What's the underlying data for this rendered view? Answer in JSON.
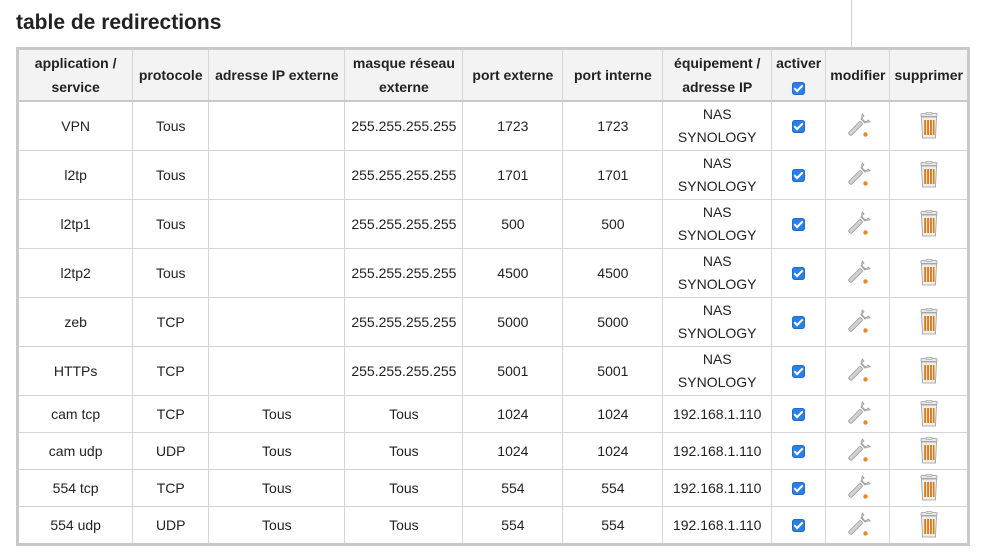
{
  "page": {
    "title": "table de redirections"
  },
  "table": {
    "headers": {
      "application": [
        "application /",
        "service"
      ],
      "protocole": "protocole",
      "ip_externe": "adresse IP externe",
      "masque": [
        "masque réseau",
        "externe"
      ],
      "port_externe": "port externe",
      "port_interne": "port interne",
      "equipement": [
        "équipement /",
        "adresse IP"
      ],
      "activer": "activer",
      "modifier": "modifier",
      "supprimer": "supprimer"
    },
    "rows": [
      {
        "service": "VPN",
        "protocol": "Tous",
        "ip_ext": "",
        "mask": "255.255.255.255",
        "port_ext": "1723",
        "port_int": "1723",
        "device": [
          "NAS",
          "SYNOLOGY"
        ],
        "active": true
      },
      {
        "service": "l2tp",
        "protocol": "Tous",
        "ip_ext": "",
        "mask": "255.255.255.255",
        "port_ext": "1701",
        "port_int": "1701",
        "device": [
          "NAS",
          "SYNOLOGY"
        ],
        "active": true
      },
      {
        "service": "l2tp1",
        "protocol": "Tous",
        "ip_ext": "",
        "mask": "255.255.255.255",
        "port_ext": "500",
        "port_int": "500",
        "device": [
          "NAS",
          "SYNOLOGY"
        ],
        "active": true
      },
      {
        "service": "l2tp2",
        "protocol": "Tous",
        "ip_ext": "",
        "mask": "255.255.255.255",
        "port_ext": "4500",
        "port_int": "4500",
        "device": [
          "NAS",
          "SYNOLOGY"
        ],
        "active": true
      },
      {
        "service": "zeb",
        "protocol": "TCP",
        "ip_ext": "",
        "mask": "255.255.255.255",
        "port_ext": "5000",
        "port_int": "5000",
        "device": [
          "NAS",
          "SYNOLOGY"
        ],
        "active": true
      },
      {
        "service": "HTTPs",
        "protocol": "TCP",
        "ip_ext": "",
        "mask": "255.255.255.255",
        "port_ext": "5001",
        "port_int": "5001",
        "device": [
          "NAS",
          "SYNOLOGY"
        ],
        "active": true
      },
      {
        "service": "cam tcp",
        "protocol": "TCP",
        "ip_ext": "Tous",
        "mask": "Tous",
        "port_ext": "1024",
        "port_int": "1024",
        "device": [
          "192.168.1.110"
        ],
        "active": true
      },
      {
        "service": "cam udp",
        "protocol": "UDP",
        "ip_ext": "Tous",
        "mask": "Tous",
        "port_ext": "1024",
        "port_int": "1024",
        "device": [
          "192.168.1.110"
        ],
        "active": true
      },
      {
        "service": "554 tcp",
        "protocol": "TCP",
        "ip_ext": "Tous",
        "mask": "Tous",
        "port_ext": "554",
        "port_int": "554",
        "device": [
          "192.168.1.110"
        ],
        "active": true
      },
      {
        "service": "554 udp",
        "protocol": "UDP",
        "ip_ext": "Tous",
        "mask": "Tous",
        "port_ext": "554",
        "port_int": "554",
        "device": [
          "192.168.1.110"
        ],
        "active": true
      }
    ]
  },
  "icons": {
    "edit": "wrench-icon",
    "delete": "trash-icon"
  },
  "colors": {
    "checkbox": "#2a7fe8",
    "header_bg": "#f3f3f3",
    "border": "#c9c9c9"
  }
}
